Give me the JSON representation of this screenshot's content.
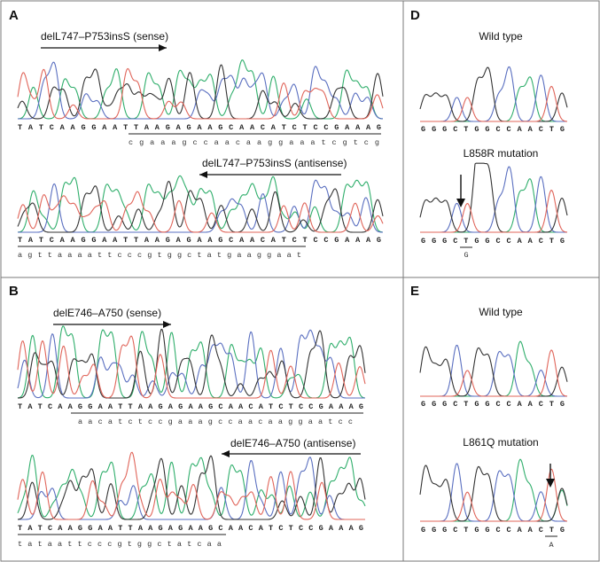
{
  "colors": {
    "A": "#2fae6b",
    "C": "#5a6fc0",
    "G": "#333333",
    "T": "#e0655a",
    "frame": "#7a7a7a"
  },
  "panels": {
    "A": {
      "label": "A",
      "top": {
        "arrow_label": "delL747–P753insS (sense)",
        "arrow_dir": "right",
        "seq": "TATCAAGGAATTAAGAGAAGCAACATCTCCGAAAG",
        "seq2": "cgaaagccaacaaggaaatcgtcg"
      },
      "bottom": {
        "arrow_label": "delL747–P753insS (antisense)",
        "arrow_dir": "left",
        "seq": "TATCAAGGAATTAAGAGAAGCAACATCTCCGAAAG",
        "seq2": "agttaaaattcccgtggctatgaaggaat"
      }
    },
    "B": {
      "label": "B",
      "top": {
        "arrow_label": "delE746–A750 (sense)",
        "arrow_dir": "right",
        "seq": "TATCAAGGAATTAAGAGAAGCAACATCTCCGAAAG",
        "seq2": "aacatctccgaaagccaacaaggaatcc"
      },
      "bottom": {
        "arrow_label": "delE746–A750 (antisense)",
        "arrow_dir": "left",
        "seq": "TATCAAGGAATTAAGAGAAGCAACATCTCCGAAAG",
        "seq2": "tataattcccgtggctatcaa"
      }
    },
    "D": {
      "label": "D",
      "wild_label": "Wild type",
      "wild_seq": "GGGCTGGCCAACTG",
      "mut_label": "L858R mutation",
      "mut_seq": "GGGCTGGCCAACTG",
      "mut_base": "G"
    },
    "E": {
      "label": "E",
      "wild_label": "Wild type",
      "wild_seq": "GGGCTGGCCAACTG",
      "mut_label": "L861Q mutation",
      "mut_seq": "GGGCTGGCCAACTG",
      "mut_base": "A"
    }
  }
}
